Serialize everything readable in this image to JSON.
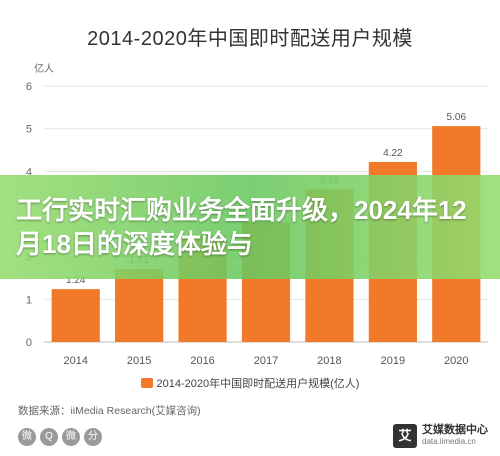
{
  "headline": "工行实时汇购业务全面升级，2024年12月18日的深度体验与",
  "chart_data": {
    "type": "bar",
    "title": "2014-2020年中国即时配送用户规模",
    "ylabel": "亿人",
    "categories": [
      "2014",
      "2015",
      "2016",
      "2017",
      "2018",
      "2019",
      "2020"
    ],
    "values": [
      1.24,
      1.71,
      2.5,
      2.8,
      3.58,
      4.22,
      5.06
    ],
    "value_labels": [
      "1.24",
      "1.71",
      "",
      "",
      "3.58",
      "4.22",
      "5.06"
    ],
    "yticks": [
      "0",
      "1",
      "2",
      "3",
      "4",
      "5",
      "6"
    ],
    "ylim": [
      0,
      6
    ],
    "legend": "2014-2020年中国即时配送用户规模(亿人)",
    "legend_position": "bottom",
    "grid": true,
    "bar_color": "#f07a2a"
  },
  "source": "数据来源：iiMedia Research(艾媒咨询)",
  "share_icons": [
    "微",
    "Q",
    "微",
    "分"
  ],
  "brand": {
    "logo": "艾",
    "name": "艾媒数据中心",
    "url": "data.iimedia.cn"
  }
}
